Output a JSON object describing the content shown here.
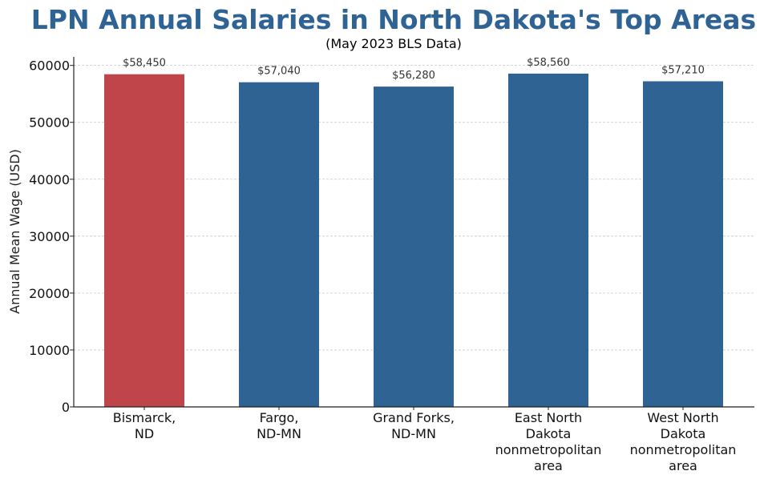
{
  "chart_data": {
    "type": "bar",
    "title": "LPN Annual Salaries in North Dakota's Top Areas",
    "subtitle": "(May 2023 BLS Data)",
    "ylabel": "Annual Mean Wage (USD)",
    "xlabel": "",
    "categories": [
      [
        "Bismarck,",
        "ND"
      ],
      [
        "Fargo,",
        "ND-MN"
      ],
      [
        "Grand Forks,",
        "ND-MN"
      ],
      [
        "East North",
        "Dakota",
        "nonmetropolitan",
        "area"
      ],
      [
        "West North",
        "Dakota",
        "nonmetropolitan",
        "area"
      ]
    ],
    "values": [
      58450,
      57040,
      56280,
      58560,
      57210
    ],
    "data_labels": [
      "$58,450",
      "$57,040",
      "$56,280",
      "$58,560",
      "$57,210"
    ],
    "bar_colors": [
      "#c0454a",
      "#2e6393",
      "#2e6393",
      "#2e6393",
      "#2e6393"
    ],
    "ylim": [
      0,
      61500
    ],
    "yticks": [
      0,
      10000,
      20000,
      30000,
      40000,
      50000,
      60000
    ],
    "ytick_labels": [
      "0",
      "10000",
      "20000",
      "30000",
      "40000",
      "50000",
      "60000"
    ],
    "grid": true,
    "grid_color": "#c8c8c8"
  }
}
